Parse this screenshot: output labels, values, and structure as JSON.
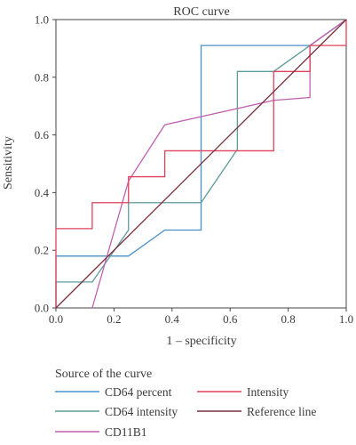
{
  "chart_data": {
    "type": "line",
    "title": "ROC curve",
    "xlabel": "1 – specificity",
    "ylabel": "Sensitivity",
    "xlim": [
      0,
      1
    ],
    "ylim": [
      0,
      1
    ],
    "xticks": [
      "0.0",
      "0.2",
      "0.4",
      "0.6",
      "0.8",
      "1.0"
    ],
    "yticks": [
      "0.0",
      "0.2",
      "0.4",
      "0.6",
      "0.8",
      "1.0"
    ],
    "grid": false,
    "legend_title": "Source of the curve",
    "legend_placement": "bottom",
    "series": [
      {
        "name": "CD64 percent",
        "color": "#4a90c8",
        "points": [
          [
            0,
            0
          ],
          [
            0,
            0.18
          ],
          [
            0.125,
            0.18
          ],
          [
            0.25,
            0.18
          ],
          [
            0.375,
            0.27
          ],
          [
            0.5,
            0.27
          ],
          [
            0.5,
            0.91
          ],
          [
            0.75,
            0.91
          ],
          [
            0.875,
            0.91
          ],
          [
            1,
            1
          ]
        ]
      },
      {
        "name": "CD64 intensity",
        "color": "#5f9a9a",
        "points": [
          [
            0,
            0
          ],
          [
            0,
            0.09
          ],
          [
            0.125,
            0.09
          ],
          [
            0.25,
            0.27
          ],
          [
            0.25,
            0.365
          ],
          [
            0.5,
            0.365
          ],
          [
            0.5,
            0.365
          ],
          [
            0.625,
            0.55
          ],
          [
            0.625,
            0.82
          ],
          [
            0.75,
            0.82
          ],
          [
            1,
            1
          ]
        ]
      },
      {
        "name": "CD11B1",
        "color": "#c060b0",
        "points": [
          [
            0.125,
            0
          ],
          [
            0.25,
            0.44
          ],
          [
            0.375,
            0.635
          ],
          [
            0.75,
            0.72
          ],
          [
            0.875,
            0.73
          ],
          [
            0.875,
            0.91
          ],
          [
            1,
            1
          ]
        ]
      },
      {
        "name": "Intensity",
        "color": "#e0405a",
        "points": [
          [
            0,
            0
          ],
          [
            0,
            0.275
          ],
          [
            0.125,
            0.275
          ],
          [
            0.125,
            0.365
          ],
          [
            0.25,
            0.365
          ],
          [
            0.25,
            0.455
          ],
          [
            0.375,
            0.455
          ],
          [
            0.375,
            0.545
          ],
          [
            0.75,
            0.545
          ],
          [
            0.75,
            0.82
          ],
          [
            0.875,
            0.82
          ],
          [
            0.875,
            0.91
          ],
          [
            1,
            0.91
          ],
          [
            1,
            1
          ]
        ]
      },
      {
        "name": "Reference line",
        "color": "#7a2e3a",
        "points": [
          [
            0,
            0
          ],
          [
            1,
            1
          ]
        ]
      }
    ]
  }
}
